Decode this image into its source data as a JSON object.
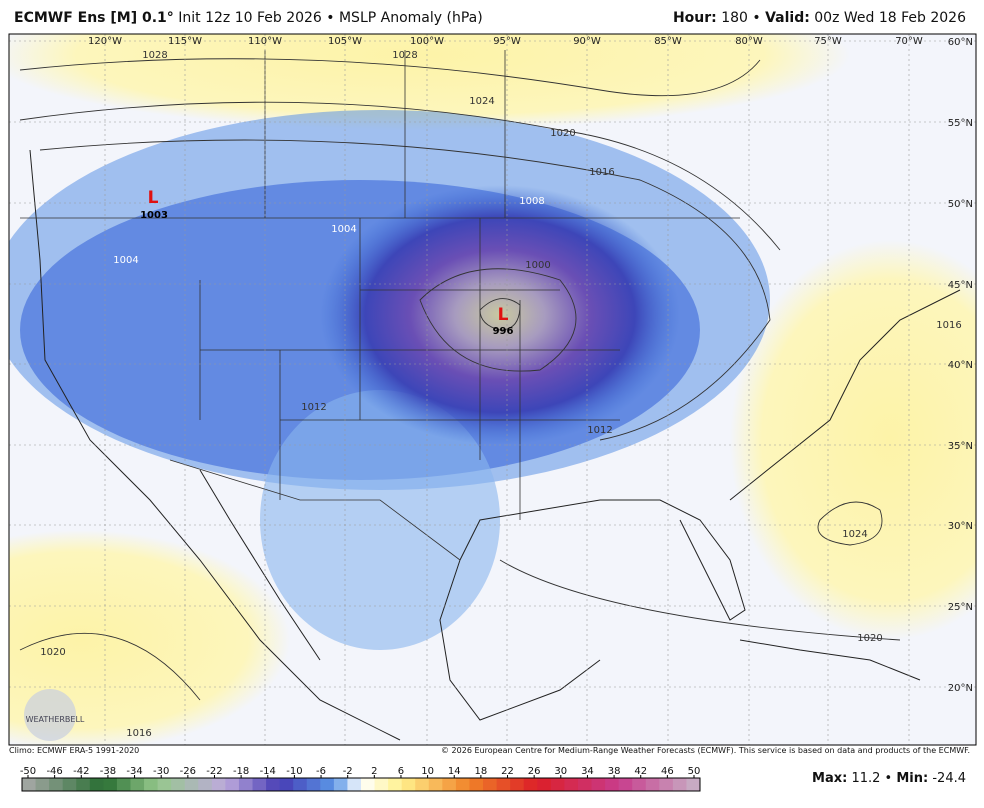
{
  "header": {
    "title": [
      "ECMWF Ens [M] 0.1°",
      " Init 12z 10 Feb 2026 • MSLP Anomaly (hPa)"
    ],
    "valid": [
      "Hour:",
      " 180 • ",
      "Valid:",
      " 00z Wed 18 Feb 2026"
    ]
  },
  "map": {
    "longitudes": [
      "120°W",
      "115°W",
      "110°W",
      "105°W",
      "100°W",
      "95°W",
      "90°W",
      "85°W",
      "80°W",
      "75°W",
      "70°W"
    ],
    "latitudes": [
      "60°N",
      "55°N",
      "50°N",
      "45°N",
      "40°N",
      "35°N",
      "30°N",
      "25°N",
      "20°N"
    ],
    "contour_labels": [
      "1028",
      "1028",
      "1024",
      "1020",
      "1016",
      "1008",
      "1004",
      "1004",
      "1000",
      "1003",
      "996",
      "1012",
      "1012",
      "1016",
      "1024",
      "1020",
      "1020",
      "1016"
    ],
    "lows": [
      "L",
      "L"
    ],
    "logo": "WEATHERBELL"
  },
  "footer": {
    "climo": "Climo: ECMWF ERA-5 1991-2020",
    "copyright": "© 2026 European Centre for Medium-Range Weather Forecasts (ECMWF). This service is based on data and products of the ECMWF."
  },
  "colorbar": {
    "ticks": [
      -50,
      -46,
      -42,
      -38,
      -34,
      -30,
      -26,
      -22,
      -18,
      -14,
      -10,
      -6,
      -2,
      2,
      6,
      10,
      14,
      18,
      22,
      26,
      30,
      34,
      38,
      42,
      46,
      50
    ]
  },
  "stats": [
    "Max:",
    " 11.2 • ",
    "Min:",
    " -24.4"
  ]
}
